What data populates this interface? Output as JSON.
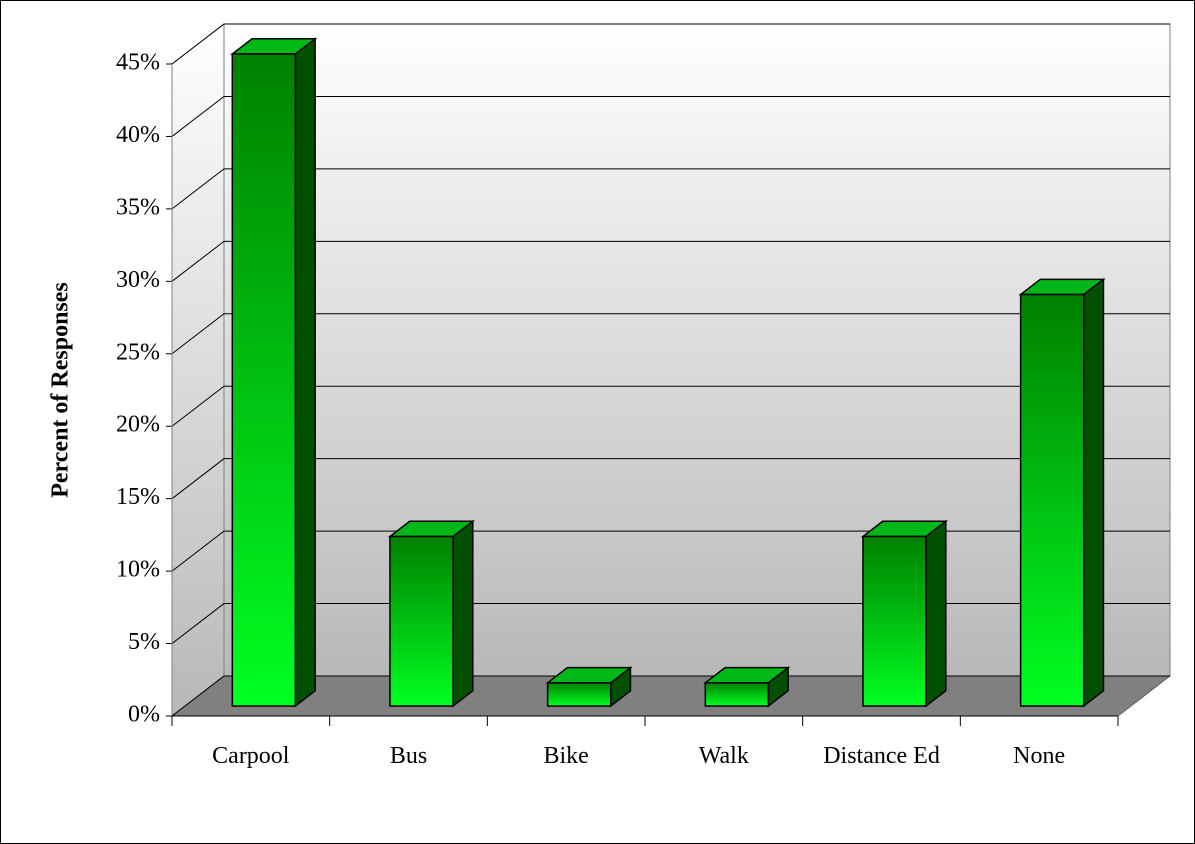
{
  "chart_data": {
    "type": "bar3d",
    "y_label": "Percent of Responses",
    "categories": [
      "Carpool",
      "Bus",
      "Bike",
      "Walk",
      "Distance Ed",
      "None"
    ],
    "values": [
      45,
      11.7,
      1.6,
      1.6,
      11.7,
      28.4
    ],
    "color": "#00e020",
    "ylim": [
      0,
      45
    ],
    "yticks": [
      {
        "value": 0,
        "label": "0%"
      },
      {
        "value": 5,
        "label": "5%"
      },
      {
        "value": 10,
        "label": "10%"
      },
      {
        "value": 15,
        "label": "15%"
      },
      {
        "value": 20,
        "label": "20%"
      },
      {
        "value": 25,
        "label": "25%"
      },
      {
        "value": 30,
        "label": "30%"
      },
      {
        "value": 35,
        "label": "35%"
      },
      {
        "value": 40,
        "label": "40%"
      },
      {
        "value": 45,
        "label": "45%"
      }
    ],
    "grid": true
  }
}
